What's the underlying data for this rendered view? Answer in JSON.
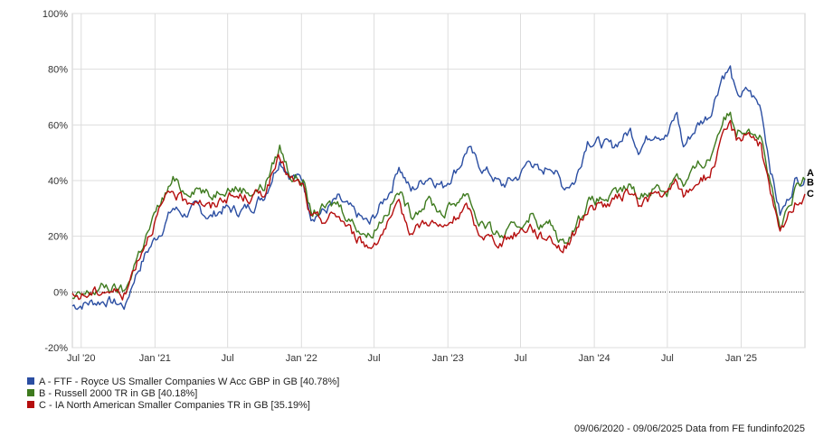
{
  "chart_data": {
    "type": "line",
    "ylim": [
      -20,
      100
    ],
    "y_ticks": [
      -20,
      0,
      20,
      40,
      60,
      80,
      100
    ],
    "y_tick_labels": [
      "-20%",
      "0%",
      "20%",
      "40%",
      "60%",
      "80%",
      "100%"
    ],
    "x_ticks": [
      {
        "date": "2020-07-01",
        "label": "Jul '20"
      },
      {
        "date": "2021-01-01",
        "label": "Jan '21"
      },
      {
        "date": "2021-07-01",
        "label": "Jul"
      },
      {
        "date": "2022-01-01",
        "label": "Jan '22"
      },
      {
        "date": "2022-07-01",
        "label": "Jul"
      },
      {
        "date": "2023-01-01",
        "label": "Jan '23"
      },
      {
        "date": "2023-07-01",
        "label": "Jul"
      },
      {
        "date": "2024-01-01",
        "label": "Jan '24"
      },
      {
        "date": "2024-07-01",
        "label": "Jul"
      },
      {
        "date": "2025-01-01",
        "label": "Jan '25"
      }
    ],
    "xlim": [
      "2020-06-09",
      "2025-06-09"
    ],
    "grid": true,
    "zero_line": true,
    "series": [
      {
        "name": "A - FTF - Royce US Smaller Companies W Acc GBP in GB [40.78%]",
        "end_label": "A",
        "color": "#2b4ea2",
        "points": [
          [
            "2020-06-09",
            -5
          ],
          [
            "2020-07-15",
            -4
          ],
          [
            "2020-09-01",
            -3
          ],
          [
            "2020-10-20",
            -5
          ],
          [
            "2020-11-10",
            5
          ],
          [
            "2020-12-10",
            14
          ],
          [
            "2021-01-15",
            22
          ],
          [
            "2021-02-15",
            30
          ],
          [
            "2021-03-15",
            28
          ],
          [
            "2021-04-15",
            30
          ],
          [
            "2021-05-20",
            27
          ],
          [
            "2021-06-20",
            30
          ],
          [
            "2021-08-01",
            29
          ],
          [
            "2021-09-01",
            31
          ],
          [
            "2021-10-01",
            35
          ],
          [
            "2021-11-08",
            48
          ],
          [
            "2021-12-05",
            42
          ],
          [
            "2022-01-05",
            40
          ],
          [
            "2022-01-25",
            28
          ],
          [
            "2022-03-01",
            29
          ],
          [
            "2022-04-01",
            33
          ],
          [
            "2022-05-15",
            28
          ],
          [
            "2022-06-20",
            24
          ],
          [
            "2022-08-15",
            38
          ],
          [
            "2022-09-01",
            46
          ],
          [
            "2022-10-01",
            36
          ],
          [
            "2022-11-15",
            42
          ],
          [
            "2022-12-20",
            38
          ],
          [
            "2023-02-01",
            46
          ],
          [
            "2023-02-20",
            52
          ],
          [
            "2023-03-15",
            46
          ],
          [
            "2023-04-20",
            42
          ],
          [
            "2023-05-15",
            38
          ],
          [
            "2023-07-01",
            42
          ],
          [
            "2023-07-25",
            48
          ],
          [
            "2023-08-20",
            42
          ],
          [
            "2023-09-15",
            46
          ],
          [
            "2023-10-15",
            38
          ],
          [
            "2023-11-15",
            40
          ],
          [
            "2023-12-15",
            55
          ],
          [
            "2024-02-15",
            52
          ],
          [
            "2024-03-31",
            58
          ],
          [
            "2024-04-20",
            52
          ],
          [
            "2024-06-01",
            58
          ],
          [
            "2024-06-30",
            56
          ],
          [
            "2024-07-25",
            64
          ],
          [
            "2024-08-10",
            52
          ],
          [
            "2024-09-15",
            60
          ],
          [
            "2024-10-15",
            64
          ],
          [
            "2024-11-15",
            78
          ],
          [
            "2024-12-05",
            80
          ],
          [
            "2024-12-20",
            70
          ],
          [
            "2025-01-20",
            72
          ],
          [
            "2025-02-20",
            66
          ],
          [
            "2025-03-15",
            45
          ],
          [
            "2025-04-08",
            28
          ],
          [
            "2025-04-25",
            32
          ],
          [
            "2025-05-15",
            40
          ],
          [
            "2025-06-09",
            40.78
          ]
        ]
      },
      {
        "name": "B - Russell 2000 TR in GB [40.18%]",
        "end_label": "B",
        "color": "#3e7a1e",
        "points": [
          [
            "2020-06-09",
            -3
          ],
          [
            "2020-07-15",
            -1
          ],
          [
            "2020-09-01",
            2
          ],
          [
            "2020-10-20",
            0
          ],
          [
            "2020-11-10",
            10
          ],
          [
            "2020-12-10",
            20
          ],
          [
            "2021-01-15",
            32
          ],
          [
            "2021-02-15",
            40
          ],
          [
            "2021-03-15",
            36
          ],
          [
            "2021-04-15",
            38
          ],
          [
            "2021-05-20",
            34
          ],
          [
            "2021-06-20",
            38
          ],
          [
            "2021-08-01",
            37
          ],
          [
            "2021-09-01",
            36
          ],
          [
            "2021-10-01",
            38
          ],
          [
            "2021-11-08",
            52
          ],
          [
            "2021-12-05",
            42
          ],
          [
            "2022-01-05",
            40
          ],
          [
            "2022-01-25",
            28
          ],
          [
            "2022-03-01",
            30
          ],
          [
            "2022-04-01",
            32
          ],
          [
            "2022-05-15",
            24
          ],
          [
            "2022-06-20",
            20
          ],
          [
            "2022-08-15",
            32
          ],
          [
            "2022-09-01",
            36
          ],
          [
            "2022-10-01",
            28
          ],
          [
            "2022-11-15",
            33
          ],
          [
            "2022-12-20",
            28
          ],
          [
            "2023-02-01",
            34
          ],
          [
            "2023-02-20",
            36
          ],
          [
            "2023-03-15",
            26
          ],
          [
            "2023-04-20",
            22
          ],
          [
            "2023-05-15",
            20
          ],
          [
            "2023-07-01",
            24
          ],
          [
            "2023-07-25",
            28
          ],
          [
            "2023-08-20",
            24
          ],
          [
            "2023-09-15",
            24
          ],
          [
            "2023-10-15",
            17
          ],
          [
            "2023-11-15",
            24
          ],
          [
            "2023-12-15",
            32
          ],
          [
            "2024-02-15",
            34
          ],
          [
            "2024-03-31",
            38
          ],
          [
            "2024-04-20",
            34
          ],
          [
            "2024-06-01",
            38
          ],
          [
            "2024-06-30",
            36
          ],
          [
            "2024-07-25",
            44
          ],
          [
            "2024-08-10",
            38
          ],
          [
            "2024-09-15",
            45
          ],
          [
            "2024-10-15",
            48
          ],
          [
            "2024-11-15",
            62
          ],
          [
            "2024-12-05",
            64
          ],
          [
            "2024-12-20",
            58
          ],
          [
            "2025-01-20",
            60
          ],
          [
            "2025-02-20",
            56
          ],
          [
            "2025-03-15",
            38
          ],
          [
            "2025-04-08",
            22
          ],
          [
            "2025-04-25",
            28
          ],
          [
            "2025-05-15",
            36
          ],
          [
            "2025-06-09",
            40.18
          ]
        ]
      },
      {
        "name": "C - IA North American Smaller Companies TR in GB [35.19%]",
        "end_label": "C",
        "color": "#b50e0e",
        "points": [
          [
            "2020-06-09",
            -2
          ],
          [
            "2020-07-15",
            -1
          ],
          [
            "2020-09-01",
            1
          ],
          [
            "2020-10-20",
            -1
          ],
          [
            "2020-11-10",
            9
          ],
          [
            "2020-12-10",
            19
          ],
          [
            "2021-01-15",
            30
          ],
          [
            "2021-02-15",
            36
          ],
          [
            "2021-03-15",
            32
          ],
          [
            "2021-04-15",
            34
          ],
          [
            "2021-05-20",
            30
          ],
          [
            "2021-06-20",
            34
          ],
          [
            "2021-08-01",
            34
          ],
          [
            "2021-09-01",
            34
          ],
          [
            "2021-10-01",
            36
          ],
          [
            "2021-11-08",
            48
          ],
          [
            "2021-12-05",
            40
          ],
          [
            "2022-01-05",
            38
          ],
          [
            "2022-01-25",
            26
          ],
          [
            "2022-03-01",
            26
          ],
          [
            "2022-04-01",
            28
          ],
          [
            "2022-05-15",
            20
          ],
          [
            "2022-06-20",
            16
          ],
          [
            "2022-08-15",
            26
          ],
          [
            "2022-09-01",
            30
          ],
          [
            "2022-10-01",
            22
          ],
          [
            "2022-11-15",
            26
          ],
          [
            "2022-12-20",
            22
          ],
          [
            "2023-02-01",
            28
          ],
          [
            "2023-02-20",
            30
          ],
          [
            "2023-03-15",
            22
          ],
          [
            "2023-04-20",
            19
          ],
          [
            "2023-05-15",
            18
          ],
          [
            "2023-07-01",
            22
          ],
          [
            "2023-07-25",
            24
          ],
          [
            "2023-08-20",
            20
          ],
          [
            "2023-09-15",
            20
          ],
          [
            "2023-10-15",
            15
          ],
          [
            "2023-11-15",
            22
          ],
          [
            "2023-12-15",
            30
          ],
          [
            "2024-02-15",
            32
          ],
          [
            "2024-03-31",
            36
          ],
          [
            "2024-04-20",
            32
          ],
          [
            "2024-06-01",
            35
          ],
          [
            "2024-06-30",
            34
          ],
          [
            "2024-07-25",
            40
          ],
          [
            "2024-08-10",
            34
          ],
          [
            "2024-09-15",
            40
          ],
          [
            "2024-10-15",
            42
          ],
          [
            "2024-11-15",
            54
          ],
          [
            "2024-12-05",
            60
          ],
          [
            "2024-12-20",
            55
          ],
          [
            "2025-01-20",
            58
          ],
          [
            "2025-02-20",
            52
          ],
          [
            "2025-03-15",
            35
          ],
          [
            "2025-04-08",
            20
          ],
          [
            "2025-04-25",
            26
          ],
          [
            "2025-05-15",
            32
          ],
          [
            "2025-06-09",
            35.19
          ]
        ]
      }
    ]
  },
  "footer": {
    "text": "09/06/2020 - 09/06/2025 Data from FE fundinfo2025"
  }
}
